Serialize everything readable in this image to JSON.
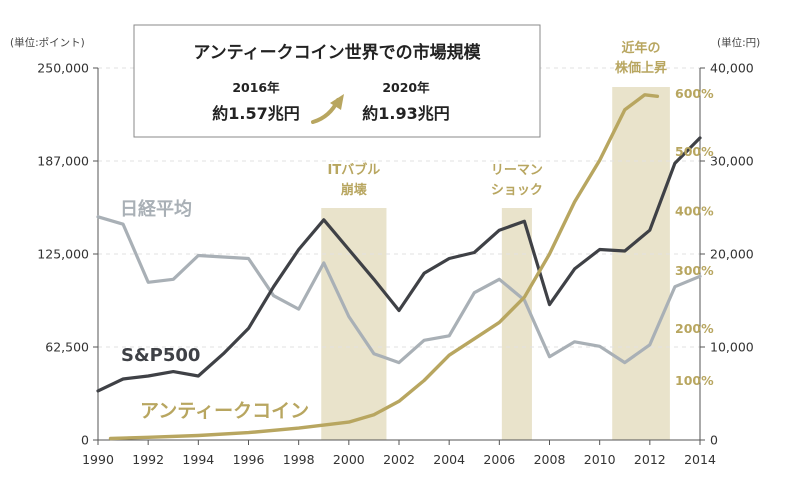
{
  "colors": {
    "band": "#e9e3cb",
    "gold": "#b8a660",
    "sp500": "#3f4146",
    "nikkei": "#a9b0b6",
    "axis": "#555555",
    "grid": "#e2e2e2",
    "box_border": "#8a8a8a"
  },
  "info_box": {
    "title": "アンティークコイン世界での市場規模",
    "year_from": "2016年",
    "value_from": "約1.57兆円",
    "year_to": "2020年",
    "value_to": "約1.93兆円",
    "arrow_icon": "up-right-arrow-icon"
  },
  "chart_data": {
    "type": "line",
    "xlim": [
      1990,
      2014
    ],
    "x_ticks": [
      "1990",
      "1992",
      "1994",
      "1996",
      "1998",
      "2000",
      "2002",
      "2004",
      "2006",
      "2008",
      "2010",
      "2012",
      "2014"
    ],
    "y_left": {
      "unit_label": "(単位:ポイント)",
      "ylim": [
        0,
        250000
      ],
      "ticks": [
        "0",
        "62,500",
        "125,000",
        "187,000",
        "250,000"
      ]
    },
    "y_right": {
      "unit_label": "(単位:円)",
      "ylim": [
        0,
        40000
      ],
      "ticks": [
        "0",
        "10,000",
        "20,000",
        "30,000",
        "40,000"
      ]
    },
    "pct_scale": {
      "ticks": [
        {
          "label": "100%",
          "y_left": 40000
        },
        {
          "label": "200%",
          "y_left": 75000
        },
        {
          "label": "300%",
          "y_left": 114000
        },
        {
          "label": "400%",
          "y_left": 154000
        },
        {
          "label": "500%",
          "y_left": 194000
        },
        {
          "label": "600%",
          "y_left": 233000
        }
      ]
    },
    "bands": [
      {
        "label_lines": [
          "ITバブル",
          "崩壊"
        ],
        "x_start": 1998.9,
        "x_end": 2001.5
      },
      {
        "label_lines": [
          "リーマン",
          "ショック"
        ],
        "x_start": 2006.1,
        "x_end": 2007.3
      },
      {
        "label_lines": [
          "近年の",
          "株価上昇"
        ],
        "x_start": 2010.5,
        "x_end": 2012.8
      }
    ],
    "series": [
      {
        "name": "日経平均",
        "axis": "left",
        "points": [
          [
            1990,
            150000
          ],
          [
            1991,
            145000
          ],
          [
            1992,
            106000
          ],
          [
            1993,
            108000
          ],
          [
            1994,
            124000
          ],
          [
            1995,
            123000
          ],
          [
            1996,
            122000
          ],
          [
            1997,
            97000
          ],
          [
            1998,
            88000
          ],
          [
            1999,
            119000
          ],
          [
            2000,
            83000
          ],
          [
            2001,
            58000
          ],
          [
            2002,
            52000
          ],
          [
            2003,
            67000
          ],
          [
            2004,
            70000
          ],
          [
            2005,
            99000
          ],
          [
            2006,
            108000
          ],
          [
            2007,
            94000
          ],
          [
            2008,
            56000
          ],
          [
            2009,
            66000
          ],
          [
            2010,
            63000
          ],
          [
            2011,
            52000
          ],
          [
            2012,
            64000
          ],
          [
            2013,
            103000
          ],
          [
            2014,
            110000
          ]
        ]
      },
      {
        "name": "S&P500",
        "axis": "left",
        "points": [
          [
            1990,
            33000
          ],
          [
            1991,
            41000
          ],
          [
            1992,
            43000
          ],
          [
            1993,
            46000
          ],
          [
            1994,
            43000
          ],
          [
            1995,
            58000
          ],
          [
            1996,
            75000
          ],
          [
            1997,
            103000
          ],
          [
            1998,
            128000
          ],
          [
            1999,
            148000
          ],
          [
            2000,
            128000
          ],
          [
            2001,
            108000
          ],
          [
            2002,
            87000
          ],
          [
            2003,
            112000
          ],
          [
            2004,
            122000
          ],
          [
            2005,
            126000
          ],
          [
            2006,
            141000
          ],
          [
            2007,
            147000
          ],
          [
            2008,
            91000
          ],
          [
            2009,
            115000
          ],
          [
            2010,
            128000
          ],
          [
            2011,
            127000
          ],
          [
            2012,
            141000
          ],
          [
            2013,
            186000
          ],
          [
            2014,
            203000
          ]
        ]
      },
      {
        "name": "アンティークコイン",
        "axis": "left",
        "points": [
          [
            1990.5,
            1000
          ],
          [
            1992,
            1800
          ],
          [
            1994,
            3000
          ],
          [
            1996,
            5000
          ],
          [
            1998,
            8000
          ],
          [
            1999,
            10000
          ],
          [
            2000,
            12000
          ],
          [
            2001,
            17000
          ],
          [
            2002,
            26000
          ],
          [
            2003,
            40000
          ],
          [
            2004,
            57000
          ],
          [
            2005,
            68000
          ],
          [
            2006,
            79000
          ],
          [
            2007,
            96000
          ],
          [
            2008,
            125000
          ],
          [
            2009,
            160000
          ],
          [
            2010,
            188000
          ],
          [
            2011,
            222000
          ],
          [
            2011.8,
            232000
          ],
          [
            2012.3,
            231000
          ]
        ]
      }
    ]
  }
}
